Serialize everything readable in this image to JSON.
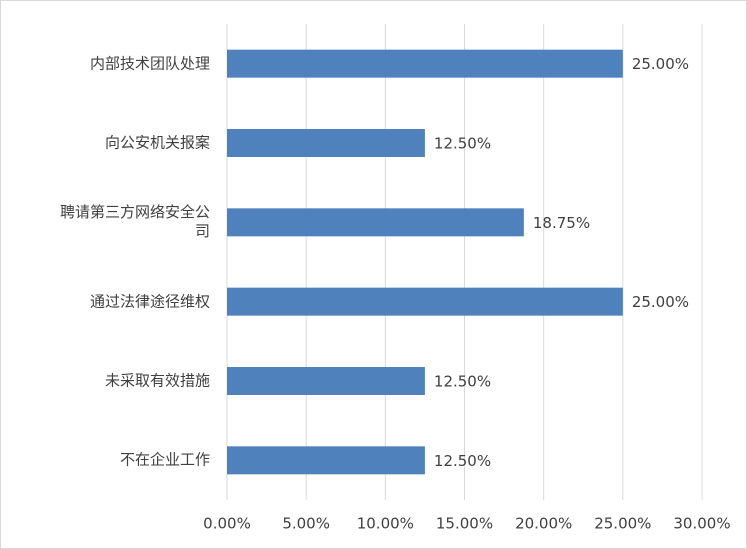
{
  "chart_data": {
    "type": "barh",
    "categories": [
      "内部技术团队处理",
      "向公安机关报案",
      "聘请第三方网络安全公司",
      "通过法律途径维权",
      "未采取有效措施",
      "不在企业工作"
    ],
    "values": [
      25,
      12.5,
      18.75,
      25,
      12.5,
      12.5
    ],
    "value_labels": [
      "25.00%",
      "12.50%",
      "18.75%",
      "25.00%",
      "12.50%",
      "12.50%"
    ],
    "color": "#4f81bd",
    "xlim": [
      0,
      30
    ],
    "xticks": [
      {
        "value": 0,
        "label": "0.00%"
      },
      {
        "value": 5,
        "label": "5.00%"
      },
      {
        "value": 10,
        "label": "10.00%"
      },
      {
        "value": 15,
        "label": "15.00%"
      },
      {
        "value": 20,
        "label": "20.00%"
      },
      {
        "value": 25,
        "label": "25.00%"
      },
      {
        "value": 30,
        "label": "30.00%"
      }
    ],
    "grid": true
  }
}
